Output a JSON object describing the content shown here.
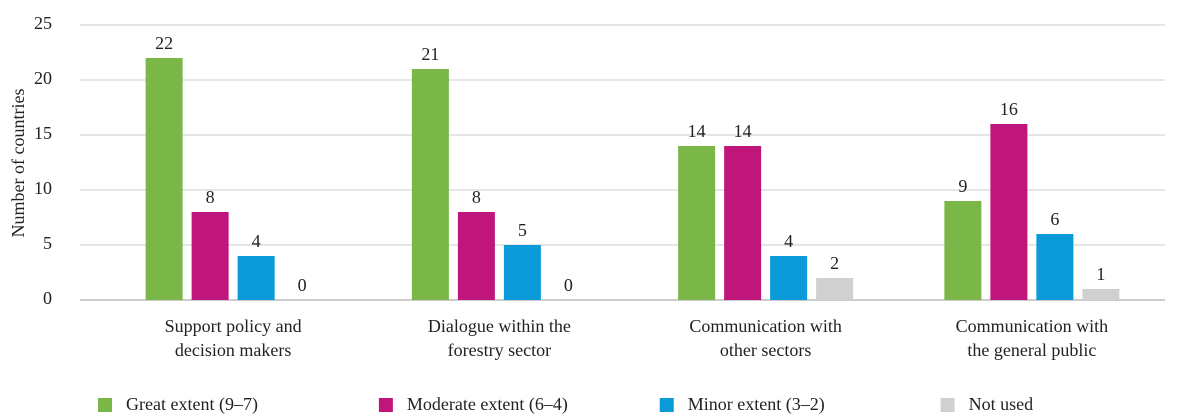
{
  "chart_data": {
    "type": "bar",
    "ylabel": "Number of countries",
    "categories": [
      [
        "Support policy and",
        "decision makers"
      ],
      [
        "Dialogue within the",
        "forestry sector"
      ],
      [
        "Communication with",
        "other sectors"
      ],
      [
        "Communication with",
        "the general public"
      ]
    ],
    "series": [
      {
        "name": "Great extent (9–7)",
        "color": "#7ab648",
        "values": [
          22,
          21,
          14,
          9
        ]
      },
      {
        "name": "Moderate extent (6–4)",
        "color": "#c0157a",
        "values": [
          8,
          8,
          14,
          16
        ]
      },
      {
        "name": "Minor extent (3–2)",
        "color": "#0a9ad7",
        "values": [
          4,
          5,
          4,
          6
        ]
      },
      {
        "name": "Not used",
        "color": "#d0d0d0",
        "values": [
          0,
          0,
          2,
          1
        ]
      }
    ],
    "ylim": [
      0,
      25
    ],
    "yticks": [
      0,
      5,
      10,
      15,
      20,
      25
    ],
    "grid": true,
    "legend": "bottom"
  }
}
